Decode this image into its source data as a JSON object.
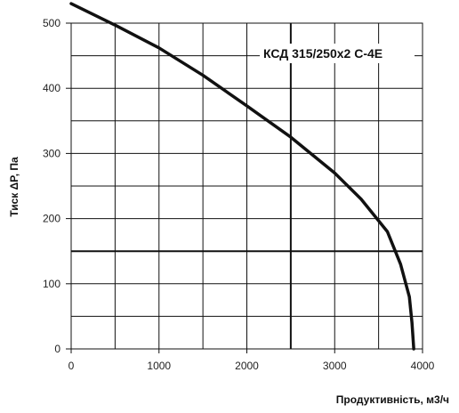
{
  "chart_data": {
    "type": "line",
    "title": "",
    "xlabel": "Продуктивність, м3/ч",
    "ylabel": "Тиск ΔP, Па",
    "xlim": [
      0,
      4000
    ],
    "ylim": [
      0,
      500
    ],
    "xticks": [
      0,
      1000,
      2000,
      3000,
      4000
    ],
    "yticks": [
      0,
      100,
      200,
      300,
      400,
      500
    ],
    "xtick_labels": [
      "0",
      "1000",
      "2000",
      "3000",
      "4000"
    ],
    "ytick_labels": [
      "0",
      "100",
      "200",
      "300",
      "400",
      "500"
    ],
    "grid": true,
    "annotation": "КСД 315/250х2 С-4Е",
    "reference_point": {
      "x": 2500,
      "y": 150
    },
    "series": [
      {
        "name": "",
        "x": [
          0,
          500,
          1000,
          1500,
          2000,
          2500,
          3000,
          3300,
          3600,
          3750,
          3850,
          3880,
          3900
        ],
        "values": [
          530,
          497,
          462,
          420,
          373,
          325,
          270,
          230,
          180,
          130,
          80,
          40,
          0
        ]
      }
    ]
  },
  "colors": {
    "grid": "#111111",
    "curve": "#111111",
    "reference_lines": "#111111",
    "background": "#ffffff"
  }
}
